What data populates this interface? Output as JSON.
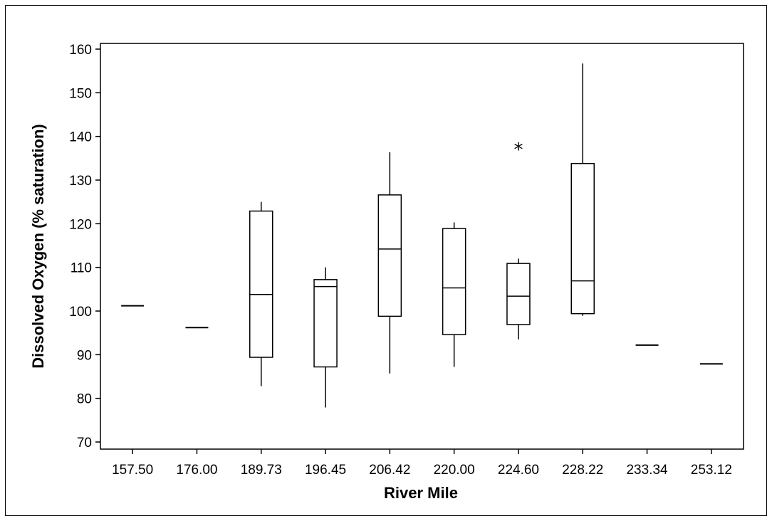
{
  "chart_data": {
    "type": "boxplot",
    "xlabel": "River Mile",
    "ylabel": "Dissolved Oxygen (% saturation)",
    "ylim": [
      70,
      160
    ],
    "yticks": [
      70,
      80,
      90,
      100,
      110,
      120,
      130,
      140,
      150,
      160
    ],
    "grid": false,
    "categories": [
      "157.50",
      "176.00",
      "189.73",
      "196.45",
      "206.42",
      "220.00",
      "224.60",
      "228.22",
      "233.34",
      "253.12"
    ],
    "boxes": [
      {
        "category": "157.50",
        "min": 101.2,
        "q1": 101.2,
        "median": 101.2,
        "q3": 101.2,
        "max": 101.2,
        "outliers": []
      },
      {
        "category": "176.00",
        "min": 96.2,
        "q1": 96.2,
        "median": 96.2,
        "q3": 96.2,
        "max": 96.2,
        "outliers": []
      },
      {
        "category": "189.73",
        "min": 82.8,
        "q1": 89.4,
        "median": 103.8,
        "q3": 122.9,
        "max": 125.0,
        "outliers": []
      },
      {
        "category": "196.45",
        "min": 77.9,
        "q1": 87.2,
        "median": 105.6,
        "q3": 107.2,
        "max": 110.0,
        "outliers": []
      },
      {
        "category": "206.42",
        "min": 85.7,
        "q1": 98.8,
        "median": 114.2,
        "q3": 126.6,
        "max": 136.4,
        "outliers": []
      },
      {
        "category": "220.00",
        "min": 87.2,
        "q1": 94.6,
        "median": 105.3,
        "q3": 118.9,
        "max": 120.3,
        "outliers": []
      },
      {
        "category": "224.60",
        "min": 93.5,
        "q1": 96.9,
        "median": 103.4,
        "q3": 110.9,
        "max": 112.0,
        "outliers": [
          137.7
        ]
      },
      {
        "category": "228.22",
        "min": 98.9,
        "q1": 99.4,
        "median": 106.9,
        "q3": 133.8,
        "max": 156.7,
        "outliers": []
      },
      {
        "category": "233.34",
        "min": 92.2,
        "q1": 92.2,
        "median": 92.2,
        "q3": 92.2,
        "max": 92.2,
        "outliers": []
      },
      {
        "category": "253.12",
        "min": 87.9,
        "q1": 87.9,
        "median": 87.9,
        "q3": 87.9,
        "max": 87.9,
        "outliers": []
      }
    ],
    "outlier_symbol": "*"
  }
}
